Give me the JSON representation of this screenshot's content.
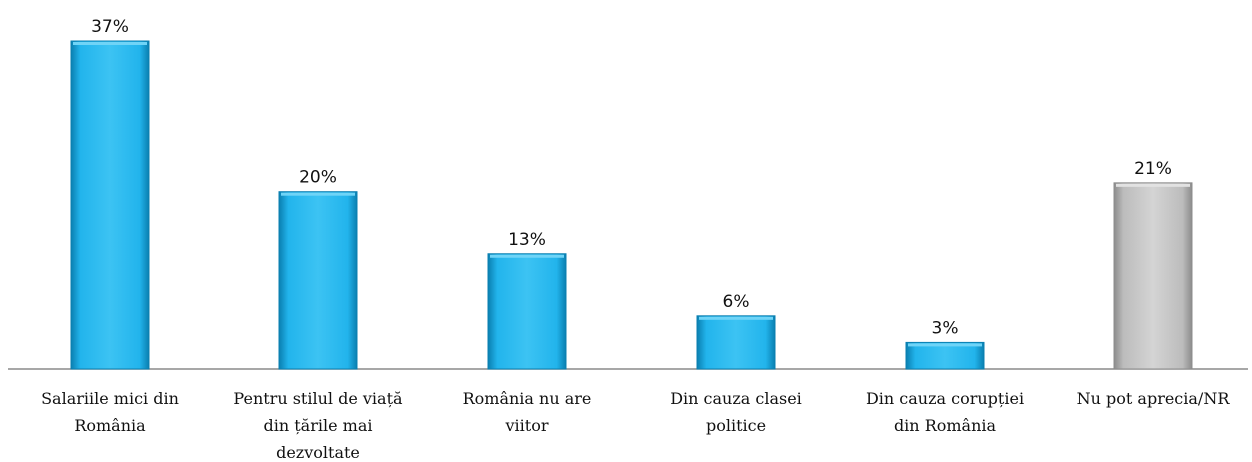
{
  "chart_data": {
    "type": "bar",
    "categories": [
      [
        "Salariile mici din",
        "România"
      ],
      [
        "Pentru stilul de viață",
        "din țările mai",
        "dezvoltate"
      ],
      [
        "România nu are",
        "viitor"
      ],
      [
        "Din cauza clasei",
        "politice"
      ],
      [
        "Din cauza corupției",
        "din România"
      ],
      [
        "Nu pot aprecia/NR"
      ]
    ],
    "values": [
      37,
      20,
      13,
      6,
      3,
      21
    ],
    "data_labels": [
      "37%",
      "20%",
      "13%",
      "6%",
      "3%",
      "21%"
    ],
    "ylim": [
      0,
      37
    ],
    "grid": false,
    "legend": "none"
  },
  "colors": {
    "bar": "#22b4ec",
    "bar_dark": "#0a7fb0",
    "bar_light": "#6fd4f7",
    "bar_special": "#c0c0c0",
    "bar_special_dark": "#8c8c8c",
    "bar_special_light": "#e2e2e2",
    "axis": "#8a8a8a"
  }
}
